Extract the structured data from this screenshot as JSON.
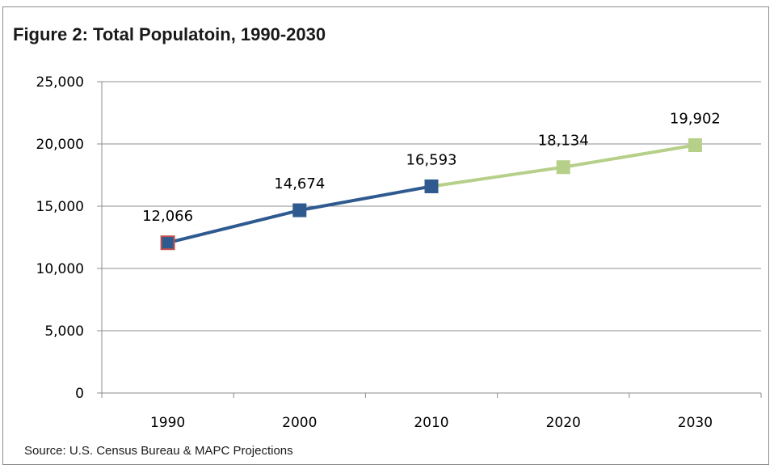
{
  "title": "Figure 2: Total Populatoin, 1990-2030",
  "source": "Source: U.S. Census Bureau & MAPC Projections",
  "chart_data": {
    "type": "line",
    "title": "Figure 2: Total Populatoin, 1990-2030",
    "xlabel": "",
    "ylabel": "",
    "categories": [
      "1990",
      "2000",
      "2010",
      "2020",
      "2030"
    ],
    "ylim": [
      0,
      25000
    ],
    "yticks": [
      0,
      5000,
      10000,
      15000,
      20000,
      25000
    ],
    "ytick_labels": [
      "0",
      "5,000",
      "10,000",
      "15,000",
      "20,000",
      "25,000"
    ],
    "grid": true,
    "legend": "none",
    "series": [
      {
        "values": [
          12066,
          14674,
          16593,
          18134,
          19902
        ],
        "labels": [
          "12,066",
          "14,674",
          "16,593",
          "18,134",
          "19,902"
        ],
        "segment_colors": [
          "#2e5a8f",
          "#2e5a8f",
          "#b6d08a",
          "#b6d08a"
        ],
        "point_colors": [
          "#2e5a8f",
          "#2e5a8f",
          "#2e5a8f",
          "#b6d08a",
          "#b6d08a"
        ],
        "first_point_edge": "#c0504d"
      }
    ],
    "colors": {
      "historical": "#2e5a8f",
      "projection": "#b6d08a",
      "grid": "#8c8c8c"
    }
  }
}
